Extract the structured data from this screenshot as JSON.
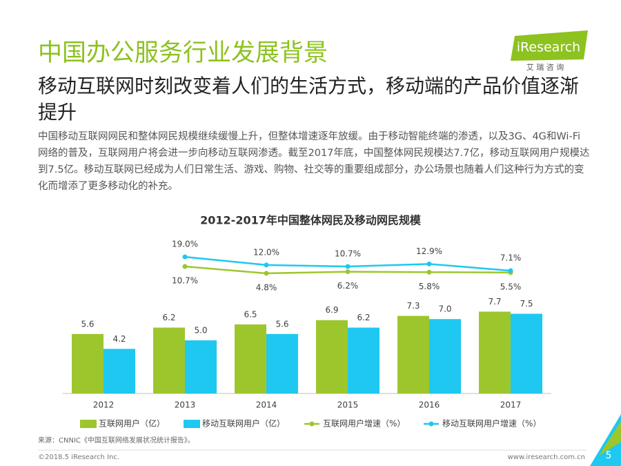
{
  "header": {
    "title": "中国办公服务行业发展背景",
    "subtitle": "移动互联网时刻改变着人们的生活方式，移动端的产品价值逐渐提升",
    "body": "中国移动互联网网民和整体网民规模继续缓慢上升，但整体增速逐年放缓。由于移动智能终端的渗透，以及3G、4G和Wi-Fi网络的普及，互联网用户将会进一步向移动互联网渗透。截至2017年底，中国整体网民规模达7.7亿，移动互联网用户规模达到7.5亿。移动互联网已经成为人们日常生活、游戏、购物、社交等的重要组成部分，办公场景也随着人们这种行为方式的变化而增添了更多移动化的补充。"
  },
  "logo": {
    "brand": "iResearch",
    "cn": "艾 瑞 咨 询"
  },
  "chart_data": {
    "type": "bar",
    "title": "2012-2017年中国整体网民及移动网民规模",
    "categories": [
      "2012",
      "2013",
      "2014",
      "2015",
      "2016",
      "2017"
    ],
    "ylim": [
      0,
      10
    ],
    "y2lim": [
      0,
      25
    ],
    "series": [
      {
        "name": "互联网用户（亿）",
        "color": "#9dc62d",
        "values": [
          5.6,
          6.2,
          6.5,
          6.9,
          7.3,
          7.7
        ],
        "value_labels": [
          "5.6",
          "6.2",
          "6.5",
          "6.9",
          "7.3",
          "7.7"
        ]
      },
      {
        "name": "移动互联网用户（亿）",
        "color": "#1ec8f0",
        "values": [
          4.2,
          5.0,
          5.6,
          6.2,
          7.0,
          7.5
        ],
        "value_labels": [
          "4.2",
          "5.0",
          "5.6",
          "6.2",
          "7.0",
          "7.5"
        ]
      },
      {
        "name": "互联网用户增速（%）",
        "color": "#9dc62d",
        "axis": "y2",
        "values": [
          null,
          10.7,
          4.8,
          6.2,
          5.8,
          5.5
        ],
        "value_labels": [
          null,
          "10.7%",
          "4.8%",
          "6.2%",
          "5.8%",
          "5.5%"
        ]
      },
      {
        "name": "移动互联网用户增速（%）",
        "color": "#1ec8f0",
        "axis": "y2",
        "values": [
          null,
          19.0,
          12.0,
          10.7,
          12.9,
          7.1
        ],
        "value_labels": [
          null,
          "19.0%",
          "12.0%",
          "10.7%",
          "12.9%",
          "7.1%"
        ]
      }
    ]
  },
  "source": "来源：CNNIC《中国互联网络发展状况统计报告》。",
  "footer": {
    "copyright": "©2018.5 iResearch Inc.",
    "url": "www.iresearch.com.cn",
    "page": "5"
  }
}
